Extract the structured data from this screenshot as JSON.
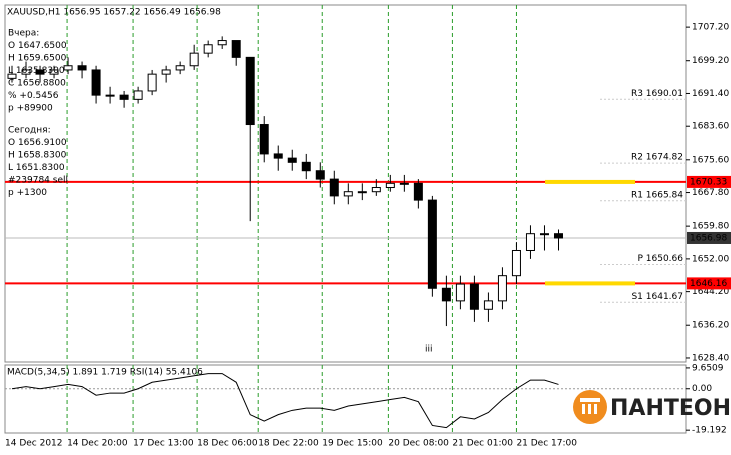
{
  "chart_data": {
    "type": "candlestick",
    "title": "XAUUSD,H1  1656.95 1657.22 1656.49 1656.98",
    "open": [
      1695,
      1696,
      1697,
      1696,
      1697,
      1698,
      1697,
      1691,
      1691,
      1690,
      1692,
      1696,
      1697,
      1698,
      1701,
      1703,
      1704,
      1700,
      1684,
      1677,
      1676,
      1675,
      1673,
      1671,
      1667,
      1668,
      1668,
      1669,
      1670,
      1670,
      1666,
      1645,
      1642,
      1646,
      1640,
      1642,
      1648,
      1654,
      1658,
      1658
    ],
    "high": [
      1698,
      1699,
      1698,
      1698,
      1700,
      1699,
      1698,
      1693,
      1692,
      1693,
      1697,
      1698,
      1699,
      1703,
      1704,
      1705,
      1704,
      1700,
      1686,
      1679,
      1678,
      1677,
      1675,
      1673,
      1670,
      1670,
      1671,
      1672,
      1672,
      1671,
      1667,
      1648,
      1648,
      1648,
      1644,
      1650,
      1656,
      1660,
      1660,
      1659
    ],
    "low": [
      1694,
      1695,
      1694,
      1695,
      1696,
      1695,
      1689,
      1689,
      1688,
      1689,
      1691,
      1694,
      1696,
      1697,
      1700,
      1702,
      1698,
      1661,
      1675,
      1673,
      1673,
      1671,
      1669,
      1665,
      1665,
      1666,
      1667,
      1668,
      1668,
      1664,
      1643,
      1636,
      1640,
      1637,
      1637,
      1640,
      1646,
      1652,
      1654,
      1654
    ],
    "close": [
      1696,
      1697,
      1696,
      1697,
      1698,
      1697,
      1691,
      1691,
      1690,
      1692,
      1696,
      1697,
      1698,
      1701,
      1703,
      1704,
      1700,
      1684,
      1677,
      1676,
      1675,
      1673,
      1671,
      1667,
      1668,
      1668,
      1669,
      1670,
      1670,
      1666,
      1645,
      1642,
      1646,
      1640,
      1642,
      1648,
      1654,
      1658,
      1658,
      1656.98
    ],
    "color": "#000000",
    "xlim": [
      0,
      48.6
    ],
    "xticks": [
      {
        "value": 0,
        "label": "14 Dec 2012"
      },
      {
        "value": 4.43,
        "label": "14 Dec 20:00"
      },
      {
        "value": 9.14,
        "label": "17 Dec 13:00"
      },
      {
        "value": 13.71,
        "label": "18 Dec 06:00"
      },
      {
        "value": 18.07,
        "label": "18 Dec 22:00"
      },
      {
        "value": 22.64,
        "label": "19 Dec 15:00"
      },
      {
        "value": 27.36,
        "label": "20 Dec 08:00"
      },
      {
        "value": 31.93,
        "label": "21 Dec 01:00"
      },
      {
        "value": 36.5,
        "label": "21 Dec 17:00"
      }
    ],
    "ylim": [
      1627.44,
      1712.47
    ],
    "yticks": [
      {
        "value": 1707.2,
        "label": "1707.20"
      },
      {
        "value": 1699.2,
        "label": "1699.20"
      },
      {
        "value": 1691.4,
        "label": "1691.40"
      },
      {
        "value": 1683.6,
        "label": "1683.60"
      },
      {
        "value": 1675.6,
        "label": "1675.60"
      },
      {
        "value": 1667.8,
        "label": "1667.80"
      },
      {
        "value": 1659.8,
        "label": "1659.80"
      },
      {
        "value": 1652,
        "label": "1652.00"
      },
      {
        "value": 1644.2,
        "label": "1644.20"
      },
      {
        "value": 1636.2,
        "label": "1636.20"
      },
      {
        "value": 1628.4,
        "label": "1628.40"
      }
    ],
    "grid": true,
    "levels": [
      {
        "value": 1670.33,
        "label": "1670.33",
        "color": "#ff0000"
      },
      {
        "value": 1646.16,
        "label": "1646.16",
        "color": "#ff0000"
      }
    ],
    "current": {
      "value": 1656.98,
      "label": "1656.98",
      "color": "#333333"
    },
    "pivots": [
      {
        "value": 1690.01,
        "label": "R3 1690.01"
      },
      {
        "value": 1674.82,
        "label": "R2 1674.82"
      },
      {
        "value": 1665.84,
        "label": "R1 1665.84"
      },
      {
        "value": 1650.66,
        "label": "P 1650.66"
      },
      {
        "value": 1641.67,
        "label": "S1 1641.67"
      }
    ],
    "info_yesterday": [
      "Вчера:",
      "O 1647.6500",
      "H 1659.6500",
      "L 1635.8300",
      "C 1656.8800",
      "% +0.5456",
      "p +89900"
    ],
    "info_today": [
      "Сегодня:",
      "O 1656.9100",
      "H 1658.8300",
      "L 1651.8300",
      "#239784 sell",
      "p +1300"
    ],
    "annotation": "iii",
    "indicator": {
      "title": "MACD(5,34,5) 1.891 1.719  RSI(14) 55.4106",
      "ylim": [
        -20.5,
        11
      ],
      "yticks": [
        {
          "value": 9.6509,
          "label": "9.6509"
        },
        {
          "value": 0,
          "label": "0.00"
        },
        -19.192
      ],
      "values": [
        0,
        1,
        0,
        1,
        2,
        1,
        -3,
        -2,
        -2,
        0,
        3,
        4,
        5,
        6,
        7,
        7,
        3,
        -12,
        -15,
        -12,
        -10,
        -9,
        -9,
        -10,
        -8,
        -7,
        -6,
        -5,
        -4,
        -6,
        -17,
        -18,
        -13,
        -14,
        -11,
        -5,
        0,
        4,
        4,
        2
      ],
      "color": "#000000"
    },
    "logo": "ПАНТЕОН"
  }
}
